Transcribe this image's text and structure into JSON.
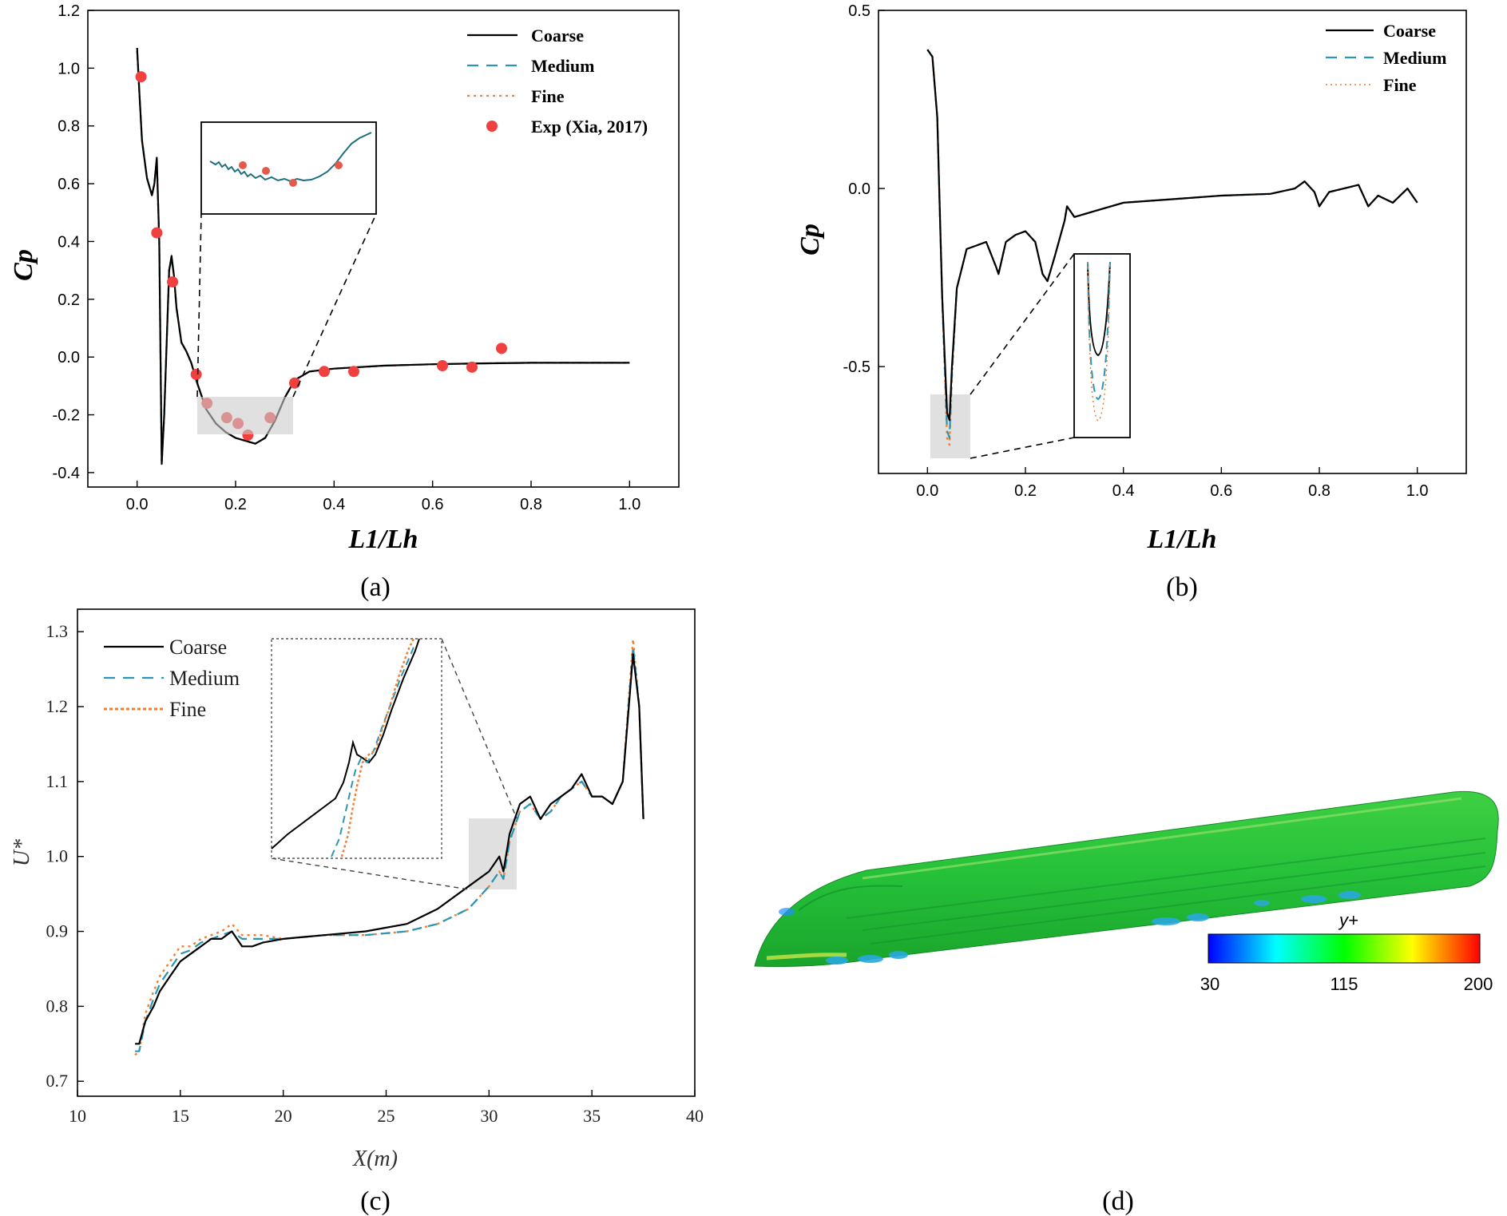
{
  "figure": {
    "panel_labels": [
      "(a)",
      "(b)",
      "(c)",
      "(d)"
    ]
  },
  "chart_data": [
    {
      "type": "line",
      "title": "",
      "xlabel": "L1/Lh",
      "ylabel": "Cp",
      "xlim": [
        -0.1,
        1.1
      ],
      "ylim": [
        -0.45,
        1.2
      ],
      "xticks": [
        "0.0",
        "0.2",
        "0.4",
        "0.6",
        "0.8",
        "1.0"
      ],
      "yticks": [
        "-0.4",
        "-0.2",
        "0.0",
        "0.2",
        "0.4",
        "0.6",
        "0.8",
        "1.0",
        "1.2"
      ],
      "legend": [
        "Coarse",
        "Medium",
        "Fine",
        "Exp (Xia, 2017)"
      ],
      "series": [
        {
          "name": "Coarse",
          "color": "#000000",
          "x": [
            0.0,
            0.005,
            0.01,
            0.02,
            0.03,
            0.035,
            0.04,
            0.045,
            0.05,
            0.055,
            0.06,
            0.065,
            0.07,
            0.075,
            0.08,
            0.09,
            0.1,
            0.11,
            0.12,
            0.14,
            0.16,
            0.18,
            0.2,
            0.22,
            0.24,
            0.26,
            0.28,
            0.3,
            0.32,
            0.35,
            0.4,
            0.5,
            0.6,
            0.7,
            0.8,
            0.9,
            1.0
          ],
          "y": [
            1.07,
            0.9,
            0.75,
            0.62,
            0.56,
            0.6,
            0.69,
            0.4,
            -0.37,
            -0.2,
            0.05,
            0.3,
            0.35,
            0.28,
            0.17,
            0.05,
            0.02,
            -0.02,
            -0.08,
            -0.18,
            -0.23,
            -0.26,
            -0.28,
            -0.29,
            -0.3,
            -0.28,
            -0.22,
            -0.14,
            -0.08,
            -0.05,
            -0.04,
            -0.03,
            -0.025,
            -0.022,
            -0.02,
            -0.02,
            -0.02
          ]
        },
        {
          "name": "Medium",
          "color": "#2a96b4",
          "x": [
            0.0,
            0.005,
            0.01,
            0.02,
            0.03,
            0.035,
            0.04,
            0.045,
            0.05,
            0.055,
            0.06,
            0.065,
            0.07,
            0.075,
            0.08,
            0.09,
            0.1,
            0.11,
            0.12,
            0.14,
            0.16,
            0.18,
            0.2,
            0.22,
            0.24,
            0.26,
            0.28,
            0.3,
            0.32,
            0.35,
            0.4,
            0.5,
            0.6,
            0.7,
            0.8,
            0.9,
            1.0
          ],
          "y": [
            1.06,
            0.9,
            0.75,
            0.62,
            0.56,
            0.6,
            0.68,
            0.4,
            -0.36,
            -0.2,
            0.05,
            0.3,
            0.34,
            0.28,
            0.17,
            0.05,
            0.02,
            -0.02,
            -0.08,
            -0.18,
            -0.23,
            -0.26,
            -0.28,
            -0.29,
            -0.3,
            -0.28,
            -0.22,
            -0.14,
            -0.08,
            -0.05,
            -0.04,
            -0.03,
            -0.025,
            -0.022,
            -0.02,
            -0.02,
            -0.02
          ]
        },
        {
          "name": "Fine",
          "color": "#f07f32",
          "x": [
            0.0,
            0.005,
            0.01,
            0.02,
            0.03,
            0.035,
            0.04,
            0.045,
            0.05,
            0.055,
            0.06,
            0.065,
            0.07,
            0.075,
            0.08,
            0.09,
            0.1,
            0.11,
            0.12,
            0.14,
            0.16,
            0.18,
            0.2,
            0.22,
            0.24,
            0.26,
            0.28,
            0.3,
            0.32,
            0.35,
            0.4,
            0.5,
            0.6,
            0.7,
            0.8,
            0.9,
            1.0
          ],
          "y": [
            1.06,
            0.9,
            0.75,
            0.62,
            0.56,
            0.6,
            0.68,
            0.4,
            -0.36,
            -0.2,
            0.05,
            0.3,
            0.34,
            0.28,
            0.17,
            0.05,
            0.02,
            -0.02,
            -0.08,
            -0.18,
            -0.23,
            -0.26,
            -0.28,
            -0.29,
            -0.3,
            -0.28,
            -0.22,
            -0.14,
            -0.08,
            -0.05,
            -0.04,
            -0.03,
            -0.025,
            -0.022,
            -0.02,
            -0.02,
            -0.02
          ]
        },
        {
          "name": "Exp (Xia, 2017)",
          "color": "#f04040",
          "kind": "scatter",
          "x": [
            0.008,
            0.04,
            0.072,
            0.12,
            0.142,
            0.182,
            0.205,
            0.225,
            0.27,
            0.32,
            0.38,
            0.44,
            0.62,
            0.68,
            0.74
          ],
          "y": [
            0.97,
            0.43,
            0.26,
            -0.06,
            -0.16,
            -0.21,
            -0.23,
            -0.27,
            -0.21,
            -0.09,
            -0.05,
            -0.05,
            -0.03,
            -0.035,
            0.03
          ]
        }
      ]
    },
    {
      "type": "line",
      "title": "",
      "xlabel": "L1/Lh",
      "ylabel": "Cp",
      "xlim": [
        -0.1,
        1.1
      ],
      "ylim": [
        -0.8,
        0.5
      ],
      "xticks": [
        "0.0",
        "0.2",
        "0.4",
        "0.6",
        "0.8",
        "1.0"
      ],
      "yticks": [
        "-0.5",
        "0.0",
        "0.5"
      ],
      "legend": [
        "Coarse",
        "Medium",
        "Fine"
      ],
      "series": [
        {
          "name": "Coarse",
          "color": "#000000",
          "x": [
            0.0,
            0.01,
            0.02,
            0.03,
            0.04,
            0.045,
            0.05,
            0.06,
            0.08,
            0.1,
            0.12,
            0.14,
            0.145,
            0.16,
            0.18,
            0.2,
            0.22,
            0.235,
            0.245,
            0.26,
            0.28,
            0.285,
            0.3,
            0.35,
            0.4,
            0.5,
            0.6,
            0.7,
            0.75,
            0.77,
            0.79,
            0.8,
            0.82,
            0.85,
            0.88,
            0.9,
            0.92,
            0.95,
            0.98,
            1.0
          ],
          "y": [
            0.39,
            0.37,
            0.2,
            -0.3,
            -0.63,
            -0.65,
            -0.5,
            -0.28,
            -0.17,
            -0.16,
            -0.15,
            -0.22,
            -0.24,
            -0.15,
            -0.13,
            -0.12,
            -0.15,
            -0.24,
            -0.26,
            -0.19,
            -0.09,
            -0.05,
            -0.08,
            -0.06,
            -0.04,
            -0.03,
            -0.02,
            -0.015,
            0.0,
            0.02,
            -0.01,
            -0.05,
            -0.01,
            0.0,
            0.01,
            -0.05,
            -0.02,
            -0.04,
            0.0,
            -0.04
          ]
        },
        {
          "name": "Medium",
          "color": "#2a96b4",
          "x": [
            0.0,
            0.01,
            0.02,
            0.03,
            0.04,
            0.045,
            0.05,
            0.06,
            0.08,
            0.1,
            0.12,
            0.14,
            0.145,
            0.16,
            0.18,
            0.2,
            0.22,
            0.235,
            0.245,
            0.26,
            0.28,
            0.285,
            0.3,
            0.35,
            0.4,
            0.5,
            0.6,
            0.7,
            0.75,
            0.77,
            0.79,
            0.8,
            0.82,
            0.85,
            0.88,
            0.9,
            0.92,
            0.95,
            0.98,
            1.0
          ],
          "y": [
            0.39,
            0.37,
            0.2,
            -0.3,
            -0.68,
            -0.7,
            -0.52,
            -0.28,
            -0.17,
            -0.16,
            -0.15,
            -0.22,
            -0.24,
            -0.15,
            -0.13,
            -0.12,
            -0.15,
            -0.24,
            -0.26,
            -0.19,
            -0.09,
            -0.05,
            -0.08,
            -0.06,
            -0.04,
            -0.03,
            -0.02,
            -0.015,
            0.0,
            0.02,
            -0.01,
            -0.05,
            -0.01,
            0.0,
            0.01,
            -0.05,
            -0.02,
            -0.04,
            0.0,
            -0.04
          ]
        },
        {
          "name": "Fine",
          "color": "#f07f32",
          "x": [
            0.0,
            0.01,
            0.02,
            0.03,
            0.04,
            0.045,
            0.05,
            0.06,
            0.08,
            0.1,
            0.12,
            0.14,
            0.145,
            0.16,
            0.18,
            0.2,
            0.22,
            0.235,
            0.245,
            0.26,
            0.28,
            0.285,
            0.3,
            0.35,
            0.4,
            0.5,
            0.6,
            0.7,
            0.75,
            0.77,
            0.79,
            0.8,
            0.82,
            0.85,
            0.88,
            0.9,
            0.92,
            0.95,
            0.98,
            1.0
          ],
          "y": [
            0.39,
            0.37,
            0.2,
            -0.3,
            -0.7,
            -0.72,
            -0.53,
            -0.28,
            -0.17,
            -0.16,
            -0.15,
            -0.22,
            -0.24,
            -0.15,
            -0.13,
            -0.12,
            -0.15,
            -0.24,
            -0.26,
            -0.19,
            -0.09,
            -0.05,
            -0.08,
            -0.06,
            -0.04,
            -0.03,
            -0.02,
            -0.015,
            0.0,
            0.02,
            -0.01,
            -0.05,
            -0.01,
            0.0,
            0.01,
            -0.05,
            -0.02,
            -0.04,
            0.0,
            -0.04
          ]
        }
      ]
    },
    {
      "type": "line",
      "title": "",
      "xlabel": "X(m)",
      "ylabel": "U*",
      "xlim": [
        10,
        40
      ],
      "ylim": [
        0.68,
        1.33
      ],
      "xticks": [
        "10",
        "15",
        "20",
        "25",
        "30",
        "35",
        "40"
      ],
      "yticks": [
        "0.7",
        "0.8",
        "0.9",
        "1.0",
        "1.1",
        "1.2",
        "1.3"
      ],
      "legend": [
        "Coarse",
        "Medium",
        "Fine"
      ],
      "series": [
        {
          "name": "Coarse",
          "color": "#000000",
          "x": [
            12.8,
            13.0,
            13.3,
            13.7,
            14.0,
            14.5,
            15.0,
            15.5,
            16.0,
            16.5,
            17.0,
            17.5,
            18.0,
            18.5,
            19.0,
            20.0,
            22.0,
            24.0,
            26.0,
            27.5,
            29.0,
            30.0,
            30.5,
            30.7,
            31.0,
            31.5,
            32.0,
            32.5,
            33.0,
            33.5,
            34.0,
            34.5,
            35.0,
            35.5,
            36.0,
            36.5,
            37.0,
            37.3,
            37.5
          ],
          "y": [
            0.75,
            0.75,
            0.78,
            0.8,
            0.82,
            0.84,
            0.86,
            0.87,
            0.88,
            0.89,
            0.89,
            0.9,
            0.88,
            0.88,
            0.885,
            0.89,
            0.895,
            0.9,
            0.91,
            0.93,
            0.96,
            0.98,
            1.0,
            0.98,
            1.03,
            1.07,
            1.08,
            1.05,
            1.07,
            1.08,
            1.09,
            1.11,
            1.08,
            1.08,
            1.07,
            1.1,
            1.27,
            1.2,
            1.05
          ]
        },
        {
          "name": "Medium",
          "color": "#2a96b4",
          "x": [
            12.8,
            13.0,
            13.3,
            13.7,
            14.0,
            14.5,
            15.0,
            15.5,
            16.0,
            16.5,
            17.0,
            17.5,
            18.0,
            18.5,
            19.0,
            20.0,
            22.0,
            24.0,
            26.0,
            27.5,
            29.0,
            30.0,
            30.5,
            30.7,
            31.0,
            31.5,
            32.0,
            32.5,
            33.0,
            33.5,
            34.0,
            34.5,
            35.0,
            35.5,
            36.0,
            36.5,
            37.0,
            37.3,
            37.5
          ],
          "y": [
            0.74,
            0.74,
            0.78,
            0.81,
            0.83,
            0.85,
            0.87,
            0.875,
            0.885,
            0.89,
            0.895,
            0.9,
            0.89,
            0.89,
            0.89,
            0.89,
            0.895,
            0.895,
            0.9,
            0.91,
            0.93,
            0.96,
            0.98,
            0.97,
            1.02,
            1.06,
            1.07,
            1.05,
            1.06,
            1.08,
            1.09,
            1.1,
            1.08,
            1.08,
            1.07,
            1.1,
            1.28,
            1.2,
            1.05
          ]
        },
        {
          "name": "Fine",
          "color": "#f07f32",
          "x": [
            12.8,
            13.0,
            13.3,
            13.7,
            14.0,
            14.5,
            15.0,
            15.5,
            16.0,
            16.5,
            17.0,
            17.5,
            18.0,
            18.5,
            19.0,
            20.0,
            22.0,
            24.0,
            26.0,
            27.5,
            29.0,
            30.0,
            30.5,
            30.7,
            31.0,
            31.5,
            32.0,
            32.5,
            33.0,
            33.5,
            34.0,
            34.5,
            35.0,
            35.5,
            36.0,
            36.5,
            37.0,
            37.3,
            37.5
          ],
          "y": [
            0.735,
            0.74,
            0.79,
            0.82,
            0.84,
            0.86,
            0.88,
            0.88,
            0.89,
            0.895,
            0.9,
            0.91,
            0.895,
            0.895,
            0.895,
            0.89,
            0.895,
            0.895,
            0.9,
            0.91,
            0.93,
            0.96,
            0.98,
            0.97,
            1.02,
            1.06,
            1.07,
            1.05,
            1.06,
            1.08,
            1.09,
            1.1,
            1.08,
            1.08,
            1.07,
            1.1,
            1.29,
            1.2,
            1.05
          ]
        }
      ]
    },
    {
      "type": "heatmap",
      "title": "",
      "colorbar_label": "y+",
      "colorbar_ticks": [
        "30",
        "115",
        "200"
      ],
      "colorbar_range": [
        30,
        200
      ]
    }
  ]
}
